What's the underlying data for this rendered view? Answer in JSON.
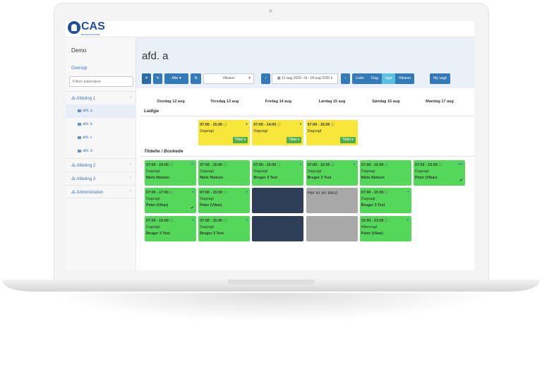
{
  "brand": {
    "name": "CAS",
    "subtitle": "BOOKINGSYSTEM",
    "color": "#1f4f9c"
  },
  "sidebar": {
    "title": "Demo",
    "overview": "Oversigt",
    "filter_placeholder": "Filtrer kalendere",
    "groups": [
      {
        "label": "Afdeling 1",
        "expanded": true,
        "children": [
          "afd. a",
          "afd. b",
          "afd. c",
          "afd. d"
        ],
        "active_child": "afd. a"
      },
      {
        "label": "Afdeling 2"
      },
      {
        "label": "Afdeling 3"
      },
      {
        "label": "Administration"
      }
    ]
  },
  "page_title": "afd. a",
  "toolbar": {
    "all_label": "Alle",
    "role_select": "Vikarer",
    "date_range": "12 aug 2020 - til - 18 aug 2020",
    "views": [
      "Liste",
      "Dag",
      "Uge",
      "Vikarer"
    ],
    "active_view": "Uge",
    "new_shift": "Ny vagt",
    "primary_color": "#337ab7",
    "active_color": "#5bc0de"
  },
  "days": [
    "Onsdag 12 aug",
    "Torsdag 13 aug",
    "Fredag 14 aug",
    "Lørdag 15 aug",
    "Søndag 16 aug",
    "Mandag 17 aug"
  ],
  "sections": {
    "open": "Ledige",
    "booked": "Tildelte / Bookede"
  },
  "open_shifts": [
    {
      "day": 1,
      "time": "07:00 - 15:00",
      "type": "Dagvagt",
      "action": "Tildel",
      "comment": true
    },
    {
      "day": 2,
      "time": "07:00 - 14:00",
      "type": "Dagvagt",
      "action": "Tildel",
      "comment": true
    },
    {
      "day": 3,
      "time": "07:00 - 15:00",
      "type": "Dagvagt",
      "action": "Tildel",
      "comment": false
    }
  ],
  "booked_shifts": [
    [
      {
        "day": 0,
        "time": "07:00 - 15:00",
        "type": "Dagvagt",
        "person": "Niels Nielsen",
        "icon": "mail"
      },
      {
        "day": 1,
        "time": "07:00 - 15:00",
        "type": "Dagvagt",
        "person": "Niels Nielsen"
      },
      {
        "day": 2,
        "time": "07:00 - 15:00",
        "type": "Dagvagt",
        "person": "Bruger 3 Test",
        "icon": "comment"
      },
      {
        "day": 3,
        "time": "07:00 - 15:00",
        "type": "Dagvagt",
        "person": "Bruger 3 Test",
        "icon": "comment"
      },
      {
        "day": 4,
        "time": "07:00 - 15:00",
        "type": "Dagvagt",
        "person": "Niels Nielsen"
      },
      {
        "day": 5,
        "time": "07:00 - 15:00",
        "type": "Dagvagt",
        "person": "Peter (Vikar)",
        "icon": "mail-comment",
        "checked": true
      }
    ],
    [
      {
        "day": 0,
        "time": "07:00 - 17:00",
        "type": "Dagvagt",
        "person": "Peter (Vikar)",
        "icon": "comment",
        "checked": true
      },
      {
        "day": 1,
        "time": "07:00 - 15:00",
        "type": "Dagvagt",
        "person": "Peter (Vikar)",
        "icon": "comment"
      },
      {
        "day": 2,
        "style": "dark"
      },
      {
        "day": 3,
        "style": "gray",
        "text": "Her er en tekst"
      },
      {
        "day": 4,
        "time": "07:00 - 15:00",
        "type": "Dagvagt",
        "person": "Bruger 3 Test",
        "icon": "comment"
      }
    ],
    [
      {
        "day": 0,
        "time": "07:00 - 15:00",
        "type": "Dagvagt",
        "person": "Bruger 3 Test",
        "icon": "comment"
      },
      {
        "day": 1,
        "time": "07:00 - 15:00",
        "type": "Dagvagt",
        "person": "Bruger 3 Test",
        "icon": "comment"
      },
      {
        "day": 2,
        "style": "dark"
      },
      {
        "day": 3,
        "style": "gray"
      },
      {
        "day": 4,
        "time": "15:00 - 23:00",
        "type": "Aftenvagt",
        "person": "Peter (Vikar)",
        "icon": "mail"
      }
    ]
  ]
}
